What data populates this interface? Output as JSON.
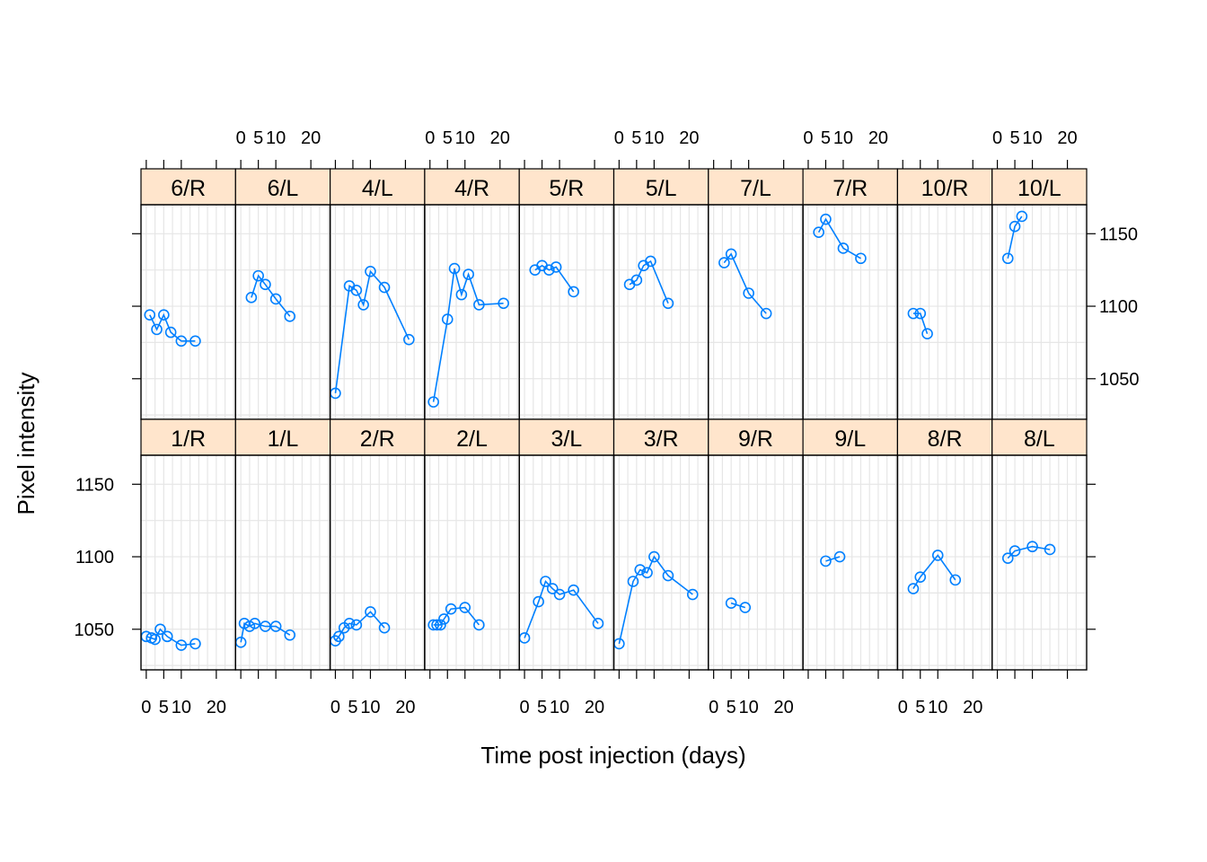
{
  "chart_data": {
    "type": "line",
    "xlabel": "Time post injection (days)",
    "ylabel": "Pixel intensity",
    "xlim": [
      -1.5,
      25.5
    ],
    "ylim": [
      1022,
      1170
    ],
    "x_ticks": [
      0,
      5,
      10,
      20
    ],
    "x_tick_labels": [
      "0",
      "5",
      "10",
      "20"
    ],
    "y_ticks": [
      1050,
      1100,
      1150
    ],
    "y_tick_labels": [
      "1050",
      "1100",
      "1150"
    ],
    "grid": true,
    "grid_x": [
      0,
      2.5,
      5,
      7.5,
      10,
      12.5,
      15,
      17.5,
      20,
      22.5,
      25
    ],
    "grid_y": [
      1025,
      1050,
      1075,
      1100,
      1125,
      1150,
      1175
    ],
    "line_color": "#0080ff",
    "strip_color": "#ffe5cc",
    "panels_top_row": [
      {
        "label": "6/R",
        "x": [
          1,
          3,
          5,
          7,
          10,
          14
        ],
        "y": [
          1094,
          1084,
          1094,
          1082,
          1076,
          1076
        ]
      },
      {
        "label": "6/L",
        "x": [
          3,
          5,
          7,
          10,
          14
        ],
        "y": [
          1106,
          1121,
          1115,
          1105,
          1093
        ]
      },
      {
        "label": "4/L",
        "x": [
          0,
          4,
          6,
          8,
          10,
          14,
          21
        ],
        "y": [
          1040,
          1114,
          1111,
          1101,
          1124,
          1113,
          1077
        ]
      },
      {
        "label": "4/R",
        "x": [
          1,
          5,
          7,
          9,
          11,
          14,
          21
        ],
        "y": [
          1034,
          1091,
          1126,
          1108,
          1122,
          1101,
          1102
        ]
      },
      {
        "label": "5/R",
        "x": [
          3,
          5,
          7,
          9,
          14
        ],
        "y": [
          1125,
          1128,
          1125,
          1127,
          1110
        ]
      },
      {
        "label": "5/L",
        "x": [
          3,
          5,
          7,
          9,
          14
        ],
        "y": [
          1115,
          1118,
          1128,
          1131,
          1102
        ]
      },
      {
        "label": "7/L",
        "x": [
          3,
          5,
          10,
          15
        ],
        "y": [
          1130,
          1136,
          1109,
          1095
        ]
      },
      {
        "label": "7/R",
        "x": [
          3,
          5,
          10,
          15
        ],
        "y": [
          1151,
          1160,
          1140,
          1133
        ]
      },
      {
        "label": "10/R",
        "x": [
          3,
          5,
          7
        ],
        "y": [
          1095,
          1095,
          1081
        ]
      },
      {
        "label": "10/L",
        "x": [
          3,
          5,
          7
        ],
        "y": [
          1133,
          1155,
          1162
        ]
      }
    ],
    "panels_bottom_row": [
      {
        "label": "1/R",
        "x": [
          0,
          1.5,
          2.5,
          4,
          6,
          10,
          14
        ],
        "y": [
          1045,
          1044,
          1043,
          1050,
          1045,
          1039,
          1040
        ]
      },
      {
        "label": "1/L",
        "x": [
          0,
          1,
          2.5,
          4,
          7,
          10,
          14
        ],
        "y": [
          1041,
          1054,
          1052,
          1054,
          1052,
          1052,
          1046
        ]
      },
      {
        "label": "2/R",
        "x": [
          0,
          1,
          2.5,
          4,
          6,
          10,
          14
        ],
        "y": [
          1042,
          1045,
          1051,
          1054,
          1053,
          1062,
          1051
        ]
      },
      {
        "label": "2/L",
        "x": [
          1,
          2,
          3,
          4,
          6,
          10,
          14
        ],
        "y": [
          1053,
          1053,
          1053,
          1057,
          1064,
          1065,
          1053
        ]
      },
      {
        "label": "3/L",
        "x": [
          0,
          4,
          6,
          8,
          10,
          14,
          21
        ],
        "y": [
          1044,
          1069,
          1083,
          1078,
          1074,
          1077,
          1054
        ]
      },
      {
        "label": "3/R",
        "x": [
          0,
          4,
          6,
          8,
          10,
          14,
          21
        ],
        "y": [
          1040,
          1083,
          1091,
          1089,
          1100,
          1087,
          1074
        ]
      },
      {
        "label": "9/R",
        "x": [
          5,
          9
        ],
        "y": [
          1068,
          1065
        ]
      },
      {
        "label": "9/L",
        "x": [
          5,
          9
        ],
        "y": [
          1097,
          1100
        ]
      },
      {
        "label": "8/R",
        "x": [
          3,
          5,
          10,
          15
        ],
        "y": [
          1078,
          1086,
          1101,
          1084
        ]
      },
      {
        "label": "8/L",
        "x": [
          3,
          5,
          10,
          15
        ],
        "y": [
          1099,
          1104,
          1107,
          1105
        ]
      }
    ]
  }
}
